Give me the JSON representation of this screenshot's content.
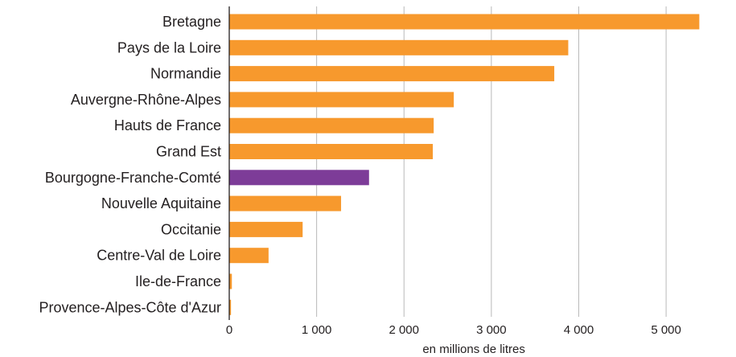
{
  "chart_data": {
    "type": "bar",
    "orientation": "horizontal",
    "categories": [
      "Bretagne",
      "Pays de la Loire",
      "Normandie",
      "Auvergne-Rhône-Alpes",
      "Hauts de France",
      "Grand Est",
      "Bourgogne-Franche-Comté",
      "Nouvelle Aquitaine",
      "Occitanie",
      "Centre-Val de Loire",
      "Ile-de-France",
      "Provence-Alpes-Côte d'Azur"
    ],
    "values": [
      5380,
      3880,
      3720,
      2570,
      2340,
      2330,
      1600,
      1280,
      840,
      450,
      30,
      20
    ],
    "highlight": "Bourgogne-Franche-Comté",
    "colors": {
      "default": "#f7992d",
      "highlight": "#7d3c98",
      "grid": "#b9b9b9",
      "axis": "#231f20"
    },
    "xlim": [
      0,
      5800
    ],
    "xticks": [
      0,
      1000,
      2000,
      3000,
      4000,
      5000
    ],
    "xtick_labels": [
      "0",
      "1 000",
      "2 000",
      "3 000",
      "4 000",
      "5 000"
    ],
    "xlabel": "en millions de litres",
    "title": "",
    "grid": true
  }
}
